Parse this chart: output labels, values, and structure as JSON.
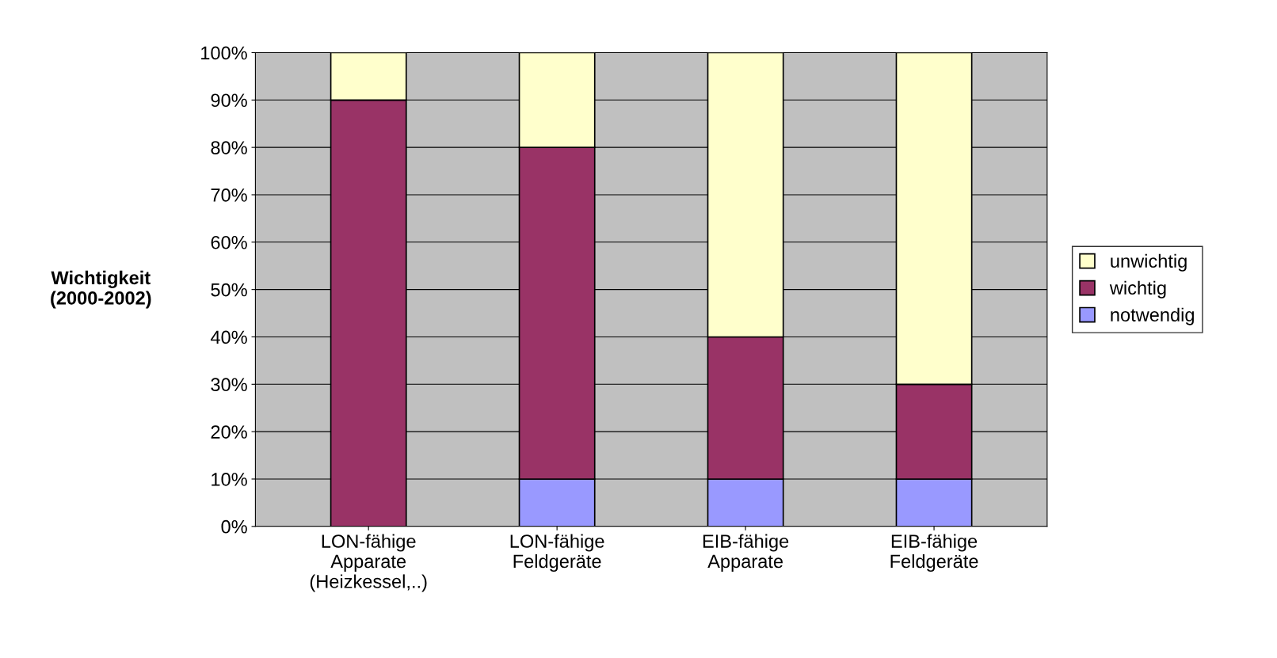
{
  "chart_data": {
    "type": "bar",
    "stacked": true,
    "ylabel": "Wichtigkeit\n(2000-2002)",
    "categories": [
      "LON-fähige\nApparate\n(Heizkessel,..)",
      "LON-fähige\nFeldgeräte",
      "EIB-fähige\nApparate",
      "EIB-fähige\nFeldgeräte"
    ],
    "series": [
      {
        "name": "notwendig",
        "color": "#9999ff",
        "values": [
          0,
          10,
          10,
          10
        ]
      },
      {
        "name": "wichtig",
        "color": "#993366",
        "values": [
          90,
          70,
          30,
          20
        ]
      },
      {
        "name": "unwichtig",
        "color": "#ffffcc",
        "values": [
          10,
          20,
          60,
          70
        ]
      }
    ],
    "ylim": [
      0,
      100
    ],
    "yticks": [
      {
        "value": 0,
        "label": "0%"
      },
      {
        "value": 10,
        "label": "10%"
      },
      {
        "value": 20,
        "label": "20%"
      },
      {
        "value": 30,
        "label": "30%"
      },
      {
        "value": 40,
        "label": "40%"
      },
      {
        "value": 50,
        "label": "50%"
      },
      {
        "value": 60,
        "label": "60%"
      },
      {
        "value": 70,
        "label": "70%"
      },
      {
        "value": 80,
        "label": "80%"
      },
      {
        "value": 90,
        "label": "90%"
      },
      {
        "value": 100,
        "label": "100%"
      }
    ],
    "grid": "y",
    "legend": "right"
  }
}
